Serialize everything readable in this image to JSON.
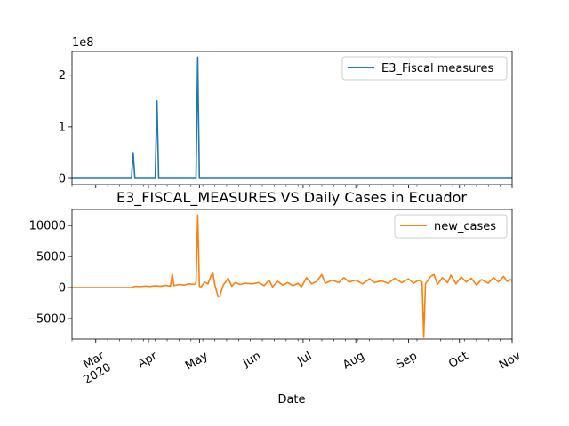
{
  "chart_data": [
    {
      "type": "line",
      "offset_label": "1e8",
      "ylim": [
        -0.12,
        2.46
      ],
      "yticks": [
        {
          "value": 0,
          "label": "0"
        },
        {
          "value": 1,
          "label": "1"
        },
        {
          "value": 2,
          "label": "2"
        }
      ],
      "series": [
        {
          "name": "E3_Fiscal measures",
          "color": "#1f77b4",
          "points": [
            [
              "2020-02-16",
              0
            ],
            [
              "2020-03-22",
              0
            ],
            [
              "2020-03-23",
              0.5
            ],
            [
              "2020-03-24",
              0
            ],
            [
              "2020-04-05",
              0
            ],
            [
              "2020-04-06",
              1.5
            ],
            [
              "2020-04-07",
              0
            ],
            [
              "2020-04-29",
              0
            ],
            [
              "2020-04-30",
              2.35
            ],
            [
              "2020-05-01",
              0
            ],
            [
              "2020-11-01",
              0
            ]
          ]
        }
      ]
    },
    {
      "type": "line",
      "title": "E3_FISCAL_MEASURES VS Daily Cases in Ecuador",
      "xlabel": "Date",
      "ylim": [
        -8300,
        12600
      ],
      "yticks": [
        {
          "value": -5000,
          "label": "−5000"
        },
        {
          "value": 0,
          "label": "0"
        },
        {
          "value": 5000,
          "label": "5000"
        },
        {
          "value": 10000,
          "label": "10000"
        }
      ],
      "xticks": [
        {
          "date": "2020-03-01",
          "label": "Mar",
          "sublabel": "2020"
        },
        {
          "date": "2020-04-01",
          "label": "Apr"
        },
        {
          "date": "2020-05-01",
          "label": "May"
        },
        {
          "date": "2020-06-01",
          "label": "Jun"
        },
        {
          "date": "2020-07-01",
          "label": "Jul"
        },
        {
          "date": "2020-08-01",
          "label": "Aug"
        },
        {
          "date": "2020-09-01",
          "label": "Sep"
        },
        {
          "date": "2020-10-01",
          "label": "Oct"
        },
        {
          "date": "2020-11-01",
          "label": "Nov"
        }
      ],
      "series": [
        {
          "name": "new_cases",
          "color": "#ff7f0e",
          "points": [
            [
              "2020-02-16",
              0
            ],
            [
              "2020-03-01",
              0
            ],
            [
              "2020-03-15",
              0
            ],
            [
              "2020-03-22",
              0
            ],
            [
              "2020-03-24",
              200
            ],
            [
              "2020-03-27",
              150
            ],
            [
              "2020-03-30",
              250
            ],
            [
              "2020-04-02",
              180
            ],
            [
              "2020-04-05",
              300
            ],
            [
              "2020-04-08",
              200
            ],
            [
              "2020-04-11",
              350
            ],
            [
              "2020-04-14",
              250
            ],
            [
              "2020-04-15",
              2200
            ],
            [
              "2020-04-16",
              300
            ],
            [
              "2020-04-19",
              500
            ],
            [
              "2020-04-22",
              400
            ],
            [
              "2020-04-25",
              600
            ],
            [
              "2020-04-28",
              500
            ],
            [
              "2020-04-29",
              800
            ],
            [
              "2020-04-30",
              11700
            ],
            [
              "2020-05-01",
              200
            ],
            [
              "2020-05-02",
              100
            ],
            [
              "2020-05-04",
              900
            ],
            [
              "2020-05-06",
              600
            ],
            [
              "2020-05-08",
              2000
            ],
            [
              "2020-05-09",
              2300
            ],
            [
              "2020-05-10",
              500
            ],
            [
              "2020-05-12",
              -1500
            ],
            [
              "2020-05-13",
              -1300
            ],
            [
              "2020-05-15",
              400
            ],
            [
              "2020-05-18",
              1500
            ],
            [
              "2020-05-20",
              200
            ],
            [
              "2020-05-22",
              800
            ],
            [
              "2020-05-25",
              500
            ],
            [
              "2020-05-28",
              700
            ],
            [
              "2020-06-01",
              600
            ],
            [
              "2020-06-05",
              800
            ],
            [
              "2020-06-08",
              300
            ],
            [
              "2020-06-11",
              1200
            ],
            [
              "2020-06-13",
              100
            ],
            [
              "2020-06-16",
              1000
            ],
            [
              "2020-06-19",
              400
            ],
            [
              "2020-06-22",
              800
            ],
            [
              "2020-06-25",
              300
            ],
            [
              "2020-06-28",
              700
            ],
            [
              "2020-06-30",
              100
            ],
            [
              "2020-07-03",
              1600
            ],
            [
              "2020-07-06",
              600
            ],
            [
              "2020-07-09",
              1000
            ],
            [
              "2020-07-12",
              2100
            ],
            [
              "2020-07-14",
              700
            ],
            [
              "2020-07-18",
              1200
            ],
            [
              "2020-07-22",
              800
            ],
            [
              "2020-07-25",
              1600
            ],
            [
              "2020-07-28",
              900
            ],
            [
              "2020-08-01",
              1200
            ],
            [
              "2020-08-05",
              600
            ],
            [
              "2020-08-09",
              1400
            ],
            [
              "2020-08-12",
              800
            ],
            [
              "2020-08-16",
              1100
            ],
            [
              "2020-08-20",
              700
            ],
            [
              "2020-08-24",
              1500
            ],
            [
              "2020-08-28",
              800
            ],
            [
              "2020-09-01",
              1400
            ],
            [
              "2020-09-04",
              700
            ],
            [
              "2020-09-07",
              1200
            ],
            [
              "2020-09-09",
              900
            ],
            [
              "2020-09-10",
              -8000
            ],
            [
              "2020-09-11",
              600
            ],
            [
              "2020-09-14",
              1800
            ],
            [
              "2020-09-16",
              2100
            ],
            [
              "2020-09-18",
              500
            ],
            [
              "2020-09-21",
              1600
            ],
            [
              "2020-09-24",
              800
            ],
            [
              "2020-09-26",
              2000
            ],
            [
              "2020-09-29",
              600
            ],
            [
              "2020-10-02",
              1700
            ],
            [
              "2020-10-05",
              900
            ],
            [
              "2020-10-08",
              1500
            ],
            [
              "2020-10-11",
              400
            ],
            [
              "2020-10-14",
              1300
            ],
            [
              "2020-10-18",
              700
            ],
            [
              "2020-10-21",
              1600
            ],
            [
              "2020-10-24",
              900
            ],
            [
              "2020-10-27",
              1800
            ],
            [
              "2020-10-29",
              1000
            ],
            [
              "2020-10-31",
              1300
            ],
            [
              "2020-11-01",
              1100
            ]
          ]
        }
      ]
    }
  ]
}
